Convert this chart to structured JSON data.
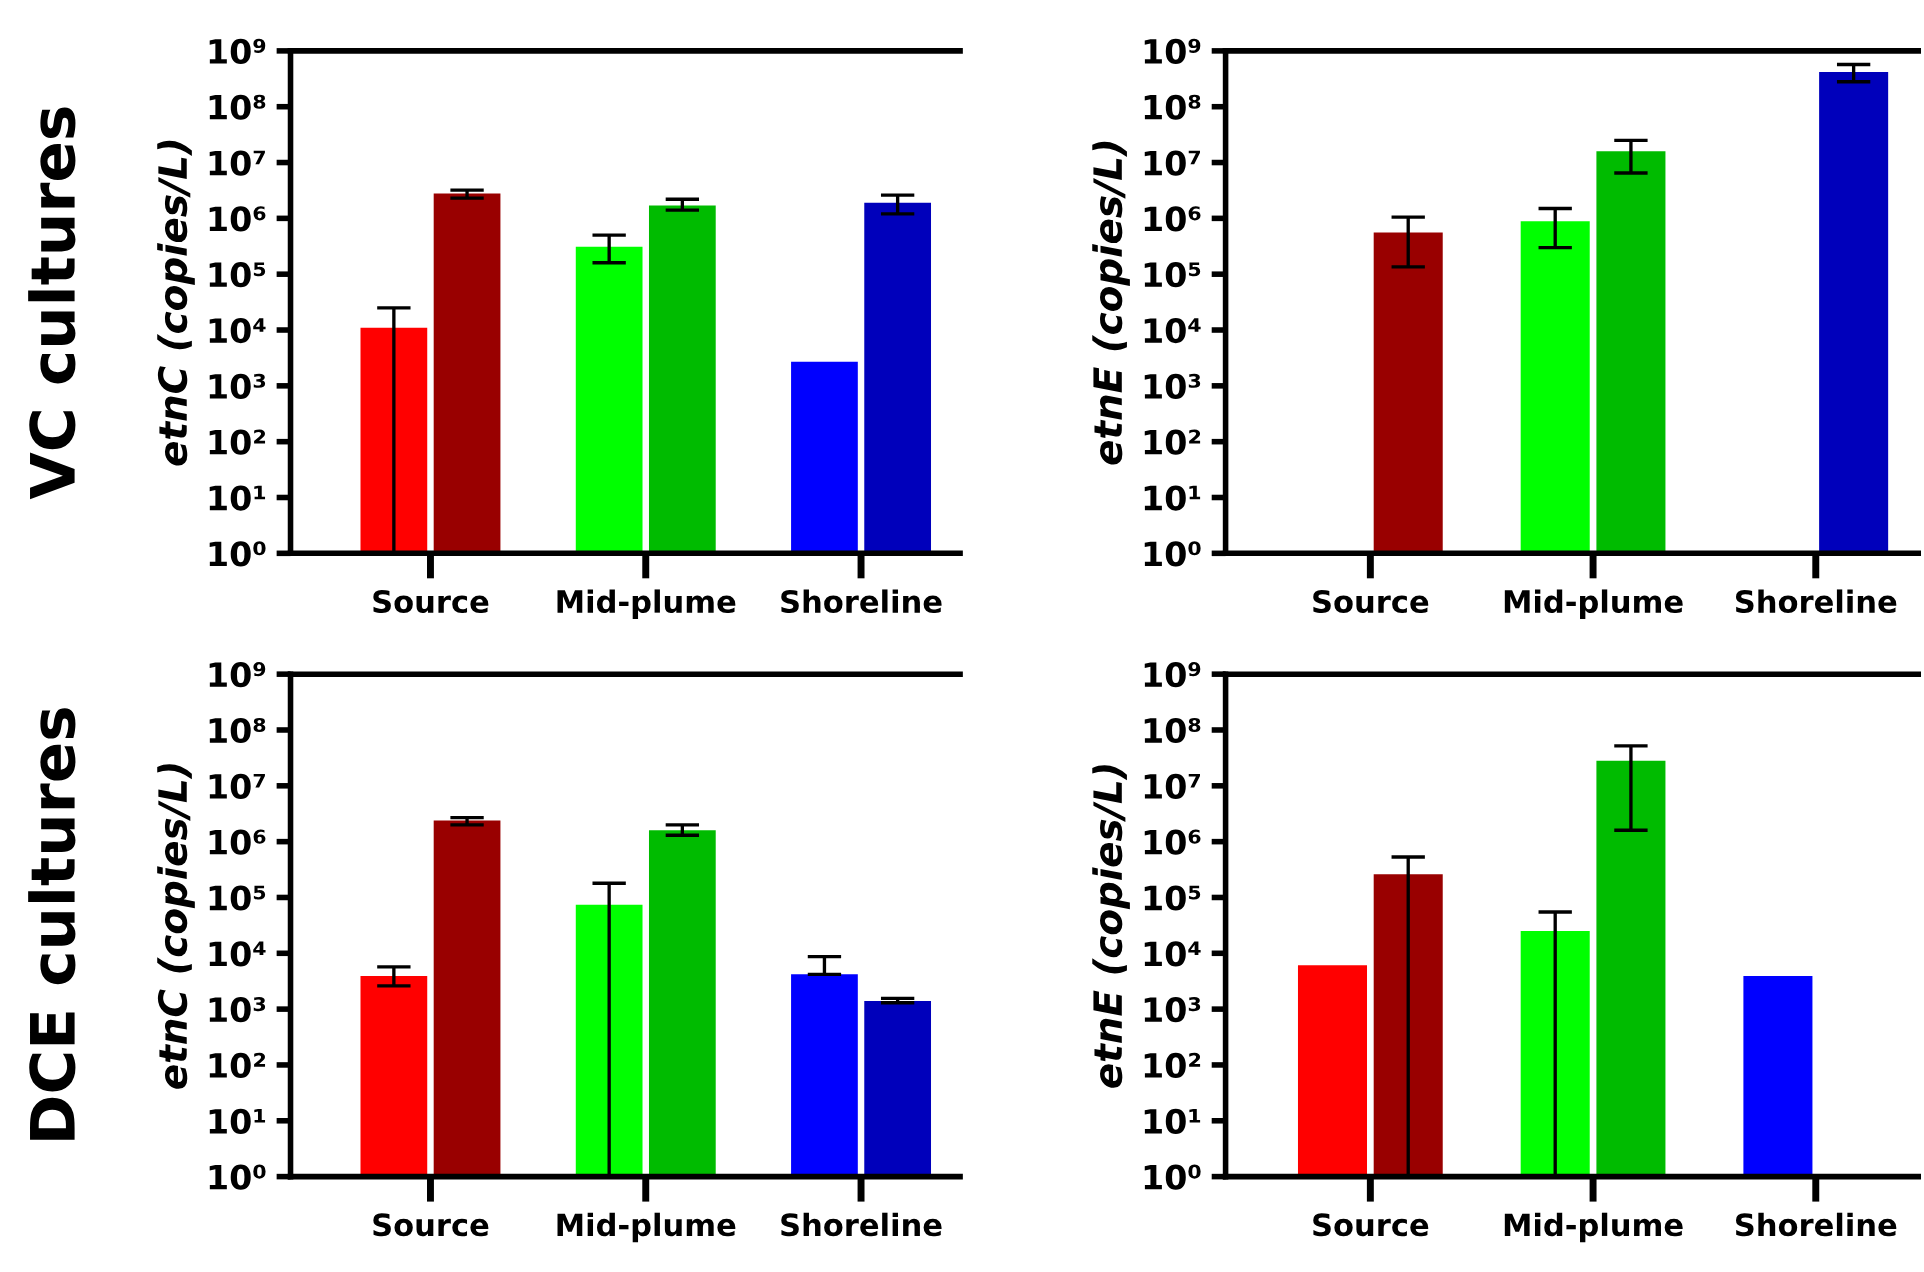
{
  "chart_data": [
    {
      "type": "bar",
      "ylabel": "etnC (copies/L)",
      "annotations": [
        "VC cultures"
      ],
      "categories": [
        "Source",
        "Mid-plume",
        "Shoreline"
      ],
      "log": true,
      "grid": false,
      "ylim": [
        1,
        1000000000
      ],
      "yticks": [
        {
          "value": 1,
          "label": "10⁰"
        },
        {
          "value": 10,
          "label": "10¹"
        },
        {
          "value": 100,
          "label": "10²"
        },
        {
          "value": 1000,
          "label": "10³"
        },
        {
          "value": 10000,
          "label": "10⁴"
        },
        {
          "value": 100000,
          "label": "10⁵"
        },
        {
          "value": 1000000,
          "label": "10⁶"
        },
        {
          "value": 10000000,
          "label": "10⁷"
        },
        {
          "value": 100000000,
          "label": "10⁸"
        },
        {
          "value": 1000000000,
          "label": "10⁹"
        }
      ],
      "series": [
        {
          "colors": [
            "#ff0000",
            "#00ff00",
            "#0000ff"
          ],
          "values": [
            11000,
            310000,
            2700
          ],
          "errors": [
            [
              1,
              25000
            ],
            [
              160000,
              500000
            ],
            null
          ]
        },
        {
          "colors": [
            "#990000",
            "#00bb00",
            "#0000bb"
          ],
          "values": [
            2800000,
            1700000,
            1900000
          ],
          "errors": [
            [
              2300000,
              3200000
            ],
            [
              1400000,
              2200000
            ],
            [
              1200000,
              2600000
            ]
          ]
        }
      ]
    },
    {
      "type": "bar",
      "ylabel": "etnE (copies/L)",
      "categories": [
        "Source",
        "Mid-plume",
        "Shoreline"
      ],
      "log": true,
      "grid": false,
      "ylim": [
        1,
        1000000000
      ],
      "yticks": [
        {
          "value": 1,
          "label": "10⁰"
        },
        {
          "value": 10,
          "label": "10¹"
        },
        {
          "value": 100,
          "label": "10²"
        },
        {
          "value": 1000,
          "label": "10³"
        },
        {
          "value": 10000,
          "label": "10⁴"
        },
        {
          "value": 100000,
          "label": "10⁵"
        },
        {
          "value": 1000000,
          "label": "10⁶"
        },
        {
          "value": 10000000,
          "label": "10⁷"
        },
        {
          "value": 100000000,
          "label": "10⁸"
        },
        {
          "value": 1000000000,
          "label": "10⁹"
        }
      ],
      "series": [
        {
          "colors": [
            "#ff0000",
            "#00ff00",
            "#0000ff"
          ],
          "values": [
            null,
            890000,
            null
          ],
          "errors": [
            null,
            [
              300000,
              1500000
            ],
            null
          ]
        },
        {
          "colors": [
            "#990000",
            "#00bb00",
            "#0000bb"
          ],
          "values": [
            560000,
            16000000,
            420000000
          ],
          "errors": [
            [
              135000,
              1050000
            ],
            [
              6500000,
              25000000
            ],
            [
              280000000,
              570000000
            ]
          ]
        }
      ]
    },
    {
      "type": "bar",
      "ylabel": "etnC (copies/L)",
      "annotations": [
        "DCE cultures"
      ],
      "categories": [
        "Source",
        "Mid-plume",
        "Shoreline"
      ],
      "log": true,
      "grid": false,
      "ylim": [
        1,
        1000000000
      ],
      "yticks": [
        {
          "value": 1,
          "label": "10⁰"
        },
        {
          "value": 10,
          "label": "10¹"
        },
        {
          "value": 100,
          "label": "10²"
        },
        {
          "value": 1000,
          "label": "10³"
        },
        {
          "value": 10000,
          "label": "10⁴"
        },
        {
          "value": 100000,
          "label": "10⁵"
        },
        {
          "value": 1000000,
          "label": "10⁶"
        },
        {
          "value": 10000000,
          "label": "10⁷"
        },
        {
          "value": 100000000,
          "label": "10⁸"
        },
        {
          "value": 1000000000,
          "label": "10⁹"
        }
      ],
      "series": [
        {
          "colors": [
            "#ff0000",
            "#00ff00",
            "#0000ff"
          ],
          "values": [
            3900,
            74000,
            4200
          ],
          "errors": [
            [
              2600,
              5700
            ],
            [
              1,
              180000
            ],
            [
              4200,
              8700
            ]
          ]
        },
        {
          "colors": [
            "#990000",
            "#00bb00",
            "#0000bb"
          ],
          "values": [
            2400000,
            1600000,
            1400
          ],
          "errors": [
            [
              2000000,
              2700000
            ],
            [
              1300000,
              2000000
            ],
            [
              1300,
              1560
            ]
          ]
        }
      ]
    },
    {
      "type": "bar",
      "ylabel": "etnE (copies/L)",
      "categories": [
        "Source",
        "Mid-plume",
        "Shoreline"
      ],
      "log": true,
      "grid": false,
      "ylim": [
        1,
        1000000000
      ],
      "yticks": [
        {
          "value": 1,
          "label": "10⁰"
        },
        {
          "value": 10,
          "label": "10¹"
        },
        {
          "value": 100,
          "label": "10²"
        },
        {
          "value": 1000,
          "label": "10³"
        },
        {
          "value": 10000,
          "label": "10⁴"
        },
        {
          "value": 100000,
          "label": "10⁵"
        },
        {
          "value": 1000000,
          "label": "10⁶"
        },
        {
          "value": 10000000,
          "label": "10⁷"
        },
        {
          "value": 100000000,
          "label": "10⁸"
        },
        {
          "value": 1000000000,
          "label": "10⁹"
        }
      ],
      "series": [
        {
          "colors": [
            "#ff0000",
            "#00ff00",
            "#0000ff"
          ],
          "values": [
            6100,
            25000,
            3900
          ],
          "errors": [
            null,
            [
              1,
              55000
            ],
            null
          ]
        },
        {
          "colors": [
            "#990000",
            "#00bb00",
            "#0000bb"
          ],
          "values": [
            260000,
            28000000,
            null
          ],
          "errors": [
            [
              1,
              530000
            ],
            [
              1600000,
              52000000
            ],
            null
          ]
        }
      ]
    }
  ]
}
